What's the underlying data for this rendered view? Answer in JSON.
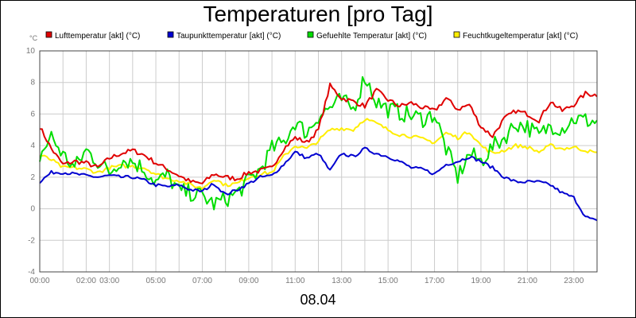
{
  "chart_data": {
    "type": "line",
    "title": "Temperaturen [pro Tag]",
    "date_label": "08.04",
    "ylabel": "°C",
    "ylim": [
      -4,
      10
    ],
    "yticks": [
      -4,
      -2,
      0,
      2,
      4,
      6,
      8,
      10
    ],
    "xlim": [
      0,
      24
    ],
    "xticks": [
      {
        "v": 0,
        "label": "00:00"
      },
      {
        "v": 2,
        "label": "02:00"
      },
      {
        "v": 3,
        "label": "03:00"
      },
      {
        "v": 5,
        "label": "05:00"
      },
      {
        "v": 7,
        "label": "07:00"
      },
      {
        "v": 9,
        "label": "09:00"
      },
      {
        "v": 11,
        "label": "11:00"
      },
      {
        "v": 13,
        "label": "13:00"
      },
      {
        "v": 15,
        "label": "15:00"
      },
      {
        "v": 17,
        "label": "17:00"
      },
      {
        "v": 19,
        "label": "19:00"
      },
      {
        "v": 21,
        "label": "21:00"
      },
      {
        "v": 23,
        "label": "23:00"
      }
    ],
    "x": [
      0,
      0.5,
      1,
      1.5,
      2,
      2.5,
      3,
      3.5,
      4,
      4.5,
      5,
      5.5,
      6,
      6.5,
      7,
      7.5,
      8,
      8.5,
      9,
      9.5,
      10,
      10.5,
      11,
      11.5,
      12,
      12.5,
      13,
      13.5,
      14,
      14.5,
      15,
      15.5,
      16,
      16.5,
      17,
      17.5,
      18,
      18.5,
      19,
      19.5,
      20,
      20.5,
      21,
      21.5,
      22,
      22.5,
      23,
      23.5,
      24
    ],
    "series": [
      {
        "name": "Lufttemperatur [akt] (°C)",
        "color": "#e00000",
        "values": [
          5.2,
          3.8,
          2.8,
          3.0,
          2.9,
          2.6,
          3.2,
          3.5,
          3.7,
          3.4,
          2.9,
          2.5,
          2.1,
          1.7,
          1.6,
          2.2,
          2.0,
          1.9,
          2.3,
          2.4,
          2.6,
          3.8,
          4.5,
          4.2,
          5.0,
          7.8,
          7.0,
          6.8,
          6.5,
          7.5,
          6.9,
          6.5,
          6.7,
          6.4,
          6.2,
          7.0,
          6.3,
          6.6,
          5.2,
          4.6,
          5.7,
          6.2,
          6.0,
          5.6,
          6.8,
          6.2,
          6.6,
          7.3,
          7.2
        ]
      },
      {
        "name": "Taupunkttemperatur [akt] (°C)",
        "color": "#0000d0",
        "values": [
          1.7,
          2.3,
          2.3,
          2.2,
          2.1,
          2.0,
          2.1,
          2.0,
          2.0,
          1.8,
          1.5,
          1.4,
          1.5,
          1.2,
          1.1,
          1.6,
          0.9,
          1.2,
          1.6,
          2.0,
          2.1,
          2.8,
          3.6,
          3.2,
          3.5,
          2.4,
          3.5,
          3.3,
          3.8,
          3.5,
          3.3,
          3.0,
          2.6,
          2.5,
          2.2,
          2.8,
          3.0,
          3.3,
          3.0,
          2.6,
          2.0,
          1.7,
          1.7,
          1.7,
          1.5,
          1.0,
          0.7,
          -0.5,
          -0.8
        ]
      },
      {
        "name": "Gefuehlte Temperatur [akt] (°C)",
        "color": "#00dd00",
        "values": [
          3.3,
          4.6,
          3.4,
          2.6,
          3.7,
          3.0,
          2.3,
          3.1,
          3.0,
          2.5,
          1.7,
          2.1,
          1.1,
          1.0,
          0.8,
          0.3,
          0.6,
          1.0,
          1.8,
          2.5,
          3.8,
          4.2,
          5.5,
          4.8,
          5.9,
          6.4,
          6.9,
          6.3,
          8.4,
          6.8,
          6.3,
          6.1,
          5.9,
          5.7,
          6.0,
          3.8,
          2.0,
          3.5,
          3.0,
          3.9,
          4.5,
          5.4,
          5.2,
          4.6,
          5.3,
          5.1,
          5.7,
          5.6,
          5.5
        ]
      },
      {
        "name": "Feuchtkugeltemperatur [akt] (°C)",
        "color": "#ffee00",
        "values": [
          3.4,
          3.1,
          2.6,
          2.6,
          2.5,
          2.3,
          2.6,
          2.7,
          2.7,
          2.6,
          2.2,
          1.9,
          1.8,
          1.5,
          1.3,
          1.9,
          1.5,
          1.6,
          2.0,
          2.2,
          2.3,
          3.3,
          4.0,
          3.8,
          4.3,
          5.0,
          5.1,
          5.0,
          5.7,
          5.4,
          5.0,
          4.7,
          4.6,
          4.4,
          4.2,
          4.8,
          4.5,
          4.9,
          4.0,
          3.5,
          3.7,
          4.0,
          3.9,
          3.6,
          4.0,
          3.8,
          3.9,
          3.7,
          3.5
        ]
      }
    ]
  }
}
